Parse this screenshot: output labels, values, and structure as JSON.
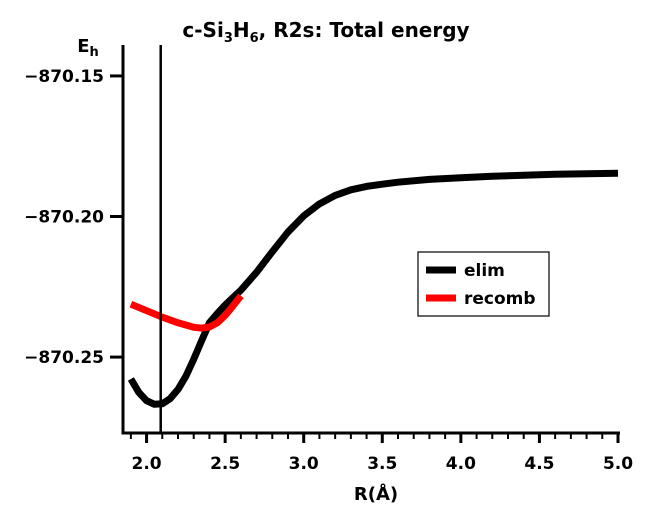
{
  "chart_data": {
    "type": "line",
    "title": {
      "prefix": "c-Si",
      "sub1": "3",
      "mid": "H",
      "sub2": "6",
      "suffix": ", R2s: Total energy"
    },
    "xlabel": "R(Å)",
    "ylabel": {
      "main": "E",
      "sub": "h"
    },
    "xlim": [
      1.85,
      5.0
    ],
    "ylim": [
      -870.277,
      -870.139
    ],
    "x_ticks": [
      2.0,
      2.5,
      3.0,
      3.5,
      4.0,
      4.5,
      5.0
    ],
    "x_tick_labels": [
      "2.0",
      "2.5",
      "3.0",
      "3.5",
      "4.0",
      "4.5",
      "5.0"
    ],
    "y_ticks": [
      -870.15,
      -870.2,
      -870.25
    ],
    "y_tick_labels": [
      "−870.15",
      "−870.20",
      "−870.25"
    ],
    "vertical_line_x": 2.09,
    "legend_position": "center-right",
    "series": [
      {
        "name": "elim",
        "color": "#000000",
        "x": [
          1.9,
          1.95,
          2.0,
          2.05,
          2.1,
          2.15,
          2.2,
          2.25,
          2.3,
          2.35,
          2.4,
          2.45,
          2.5,
          2.55,
          2.6,
          2.7,
          2.8,
          2.9,
          3.0,
          3.1,
          3.2,
          3.3,
          3.4,
          3.5,
          3.6,
          3.8,
          4.0,
          4.2,
          4.4,
          4.6,
          4.8,
          5.0
        ],
        "y": [
          -870.2578,
          -870.2625,
          -870.2655,
          -870.2668,
          -870.2666,
          -870.2648,
          -870.2615,
          -870.2568,
          -870.2508,
          -870.2442,
          -870.2378,
          -870.2345,
          -870.2315,
          -870.2288,
          -870.2262,
          -870.2198,
          -870.2125,
          -870.2055,
          -870.1998,
          -870.1955,
          -870.1925,
          -870.1905,
          -870.1893,
          -870.1885,
          -870.1878,
          -870.1868,
          -870.1862,
          -870.1857,
          -870.1853,
          -870.185,
          -870.1848,
          -870.1846
        ]
      },
      {
        "name": "recomb",
        "color": "#ff0000",
        "x": [
          1.9,
          2.0,
          2.1,
          2.2,
          2.3,
          2.35,
          2.4,
          2.45,
          2.5,
          2.55,
          2.6
        ],
        "y": [
          -870.2312,
          -870.2335,
          -870.2358,
          -870.2378,
          -870.2394,
          -870.2397,
          -870.2393,
          -870.2378,
          -870.2352,
          -870.2318,
          -870.2282
        ]
      }
    ]
  }
}
